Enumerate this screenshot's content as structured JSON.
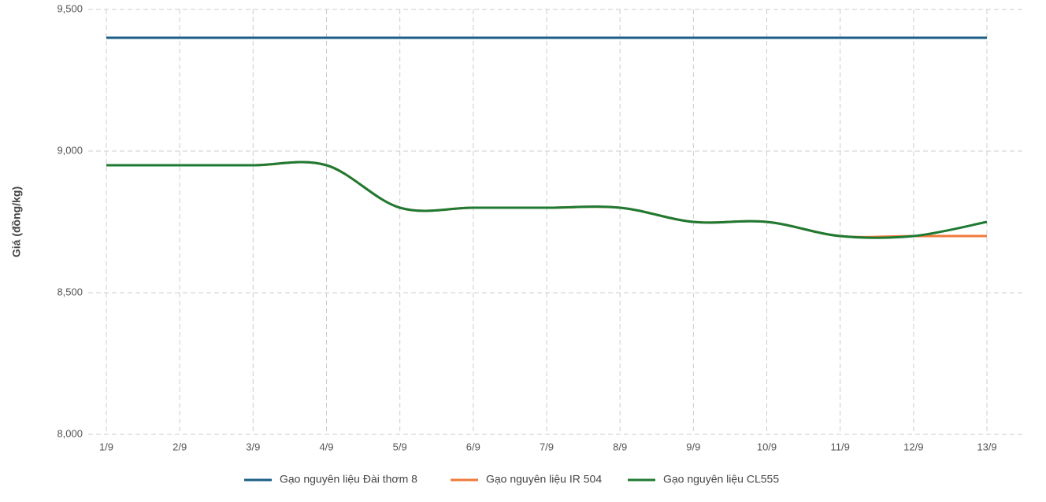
{
  "chart_data": {
    "type": "line",
    "y_label": "Giá (đồng/kg)",
    "categories": [
      "1/9",
      "2/9",
      "3/9",
      "4/9",
      "5/9",
      "6/9",
      "7/9",
      "8/9",
      "9/9",
      "10/9",
      "11/9",
      "12/9",
      "13/9"
    ],
    "series": [
      {
        "name": "Gạo nguyên liệu Đài thơm 8",
        "color": "#1b5e86",
        "values": [
          9400,
          9400,
          9400,
          9400,
          9400,
          9400,
          9400,
          9400,
          9400,
          9400,
          9400,
          9400,
          9400
        ]
      },
      {
        "name": "Gạo nguyên liệu IR 504",
        "color": "#f07a3a",
        "values": [
          8950,
          8950,
          8950,
          8950,
          8800,
          8800,
          8800,
          8800,
          8750,
          8750,
          8700,
          8700,
          8700
        ]
      },
      {
        "name": "Gạo nguyên liệu CL555",
        "color": "#1e7a32",
        "values": [
          8950,
          8950,
          8950,
          8950,
          8800,
          8800,
          8800,
          8800,
          8750,
          8750,
          8700,
          8700,
          8750
        ]
      }
    ],
    "ylim": [
      8000,
      9500
    ],
    "yticks": [
      {
        "value": 8000,
        "label": "8,000"
      },
      {
        "value": 8500,
        "label": "8,500"
      },
      {
        "value": 9000,
        "label": "9,000"
      },
      {
        "value": 9500,
        "label": "9,500"
      }
    ],
    "grid": true,
    "smooth": true,
    "legend": "bottom"
  }
}
